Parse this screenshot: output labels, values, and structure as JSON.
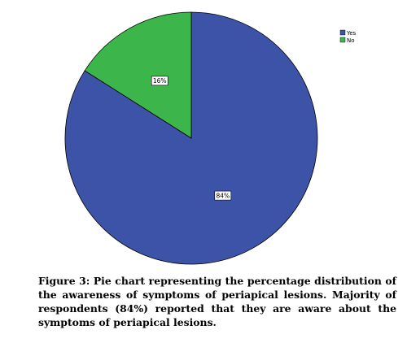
{
  "figure": {
    "caption": "Figure 3: Pie chart representing the percentage distribution of the awareness of symptoms of periapical lesions. Majority of respondents (84%) reported that they are aware about the symptoms of periapical lesions."
  },
  "chart_data": {
    "type": "pie",
    "slices": [
      {
        "label": "Yes",
        "value": 84,
        "display": "84%",
        "color": "#3c53a7"
      },
      {
        "label": "No",
        "value": 16,
        "display": "16%",
        "color": "#3cb54a"
      }
    ],
    "start": "top, clockwise",
    "legend_position": "top-right",
    "title": "",
    "unit": "%"
  }
}
